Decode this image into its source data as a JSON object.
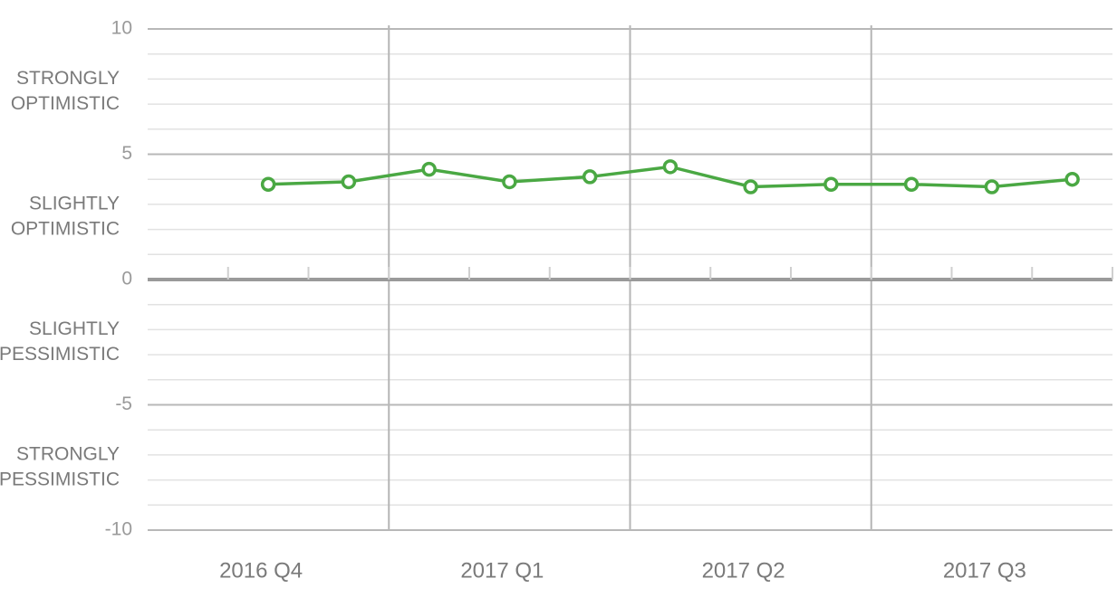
{
  "chart_data": {
    "type": "line",
    "groups": [
      "2016 Q4",
      "2017 Q1",
      "2017 Q2",
      "2017 Q3"
    ],
    "series": [
      {
        "color": "#4aa843",
        "values": [
          null,
          3.8,
          3.9,
          4.4,
          3.9,
          4.1,
          4.5,
          3.7,
          3.8,
          3.8,
          3.7,
          4.0
        ]
      }
    ],
    "ylim": [
      -10,
      10
    ],
    "yticks": [
      -10,
      -5,
      0,
      5,
      10
    ],
    "minor_grid_step": 1,
    "grid": true,
    "band_labels": [
      {
        "value": 7.5,
        "label": [
          "STRONGLY",
          "OPTIMISTIC"
        ]
      },
      {
        "value": 2.5,
        "label": [
          "SLIGHTLY",
          "OPTIMISTIC"
        ]
      },
      {
        "value": -2.5,
        "label": [
          "SLIGHTLY",
          "PESSIMISTIC"
        ]
      },
      {
        "value": -7.5,
        "label": [
          "STRONGLY",
          "PESSIMISTIC"
        ]
      }
    ]
  }
}
